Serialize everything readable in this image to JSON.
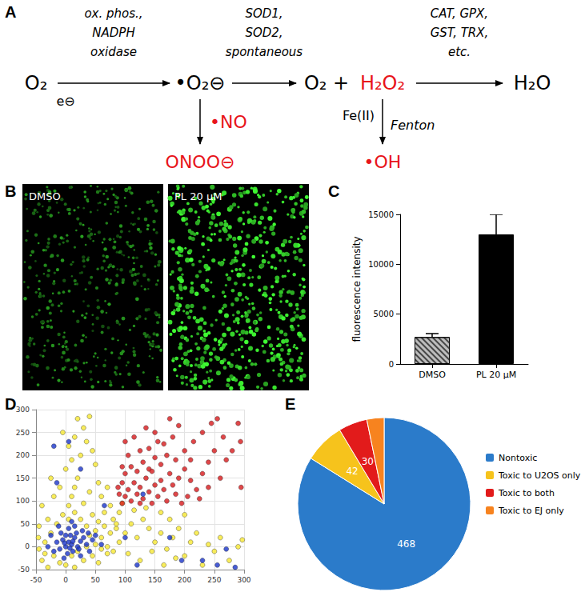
{
  "diagram": {
    "panel": "A",
    "main": [
      {
        "label": "O₂"
      },
      {
        "label": "•O₂⊖"
      },
      {
        "label": "O₂ +"
      },
      {
        "label": "H₂O₂",
        "color": "#e8141b"
      },
      {
        "label": "H₂O"
      }
    ],
    "steps": [
      {
        "lines": [
          "ox. phos.,",
          "NADPH",
          "oxidase"
        ],
        "below": "e⊖"
      },
      {
        "lines": [
          "SOD1,",
          "SOD2,",
          "spontaneous"
        ]
      },
      {
        "lines": [
          "CAT, GPX,",
          "GST, TRX,",
          "etc."
        ]
      }
    ],
    "branches": [
      {
        "reagent": "•NO",
        "product": "ONOO⊖",
        "color": "#e8141b"
      },
      {
        "left": "Fe(II)",
        "right": "Fenton",
        "product": "•OH",
        "color": "#e8141b"
      }
    ]
  },
  "images": {
    "panel": "B",
    "labels": [
      "DMSO",
      "PL 20 μM"
    ]
  },
  "chart_data": [
    {
      "panel": "C",
      "type": "bar",
      "categories": [
        "DMSO",
        "PL 20 μM"
      ],
      "values": [
        2700,
        13000
      ],
      "errors": [
        350,
        2000
      ],
      "colors": [
        "#bdbdbd",
        "#000000"
      ],
      "ylabel": "fluorescence intensity",
      "ylim": [
        0,
        15000
      ],
      "yticks": [
        0,
        5000,
        10000,
        15000
      ],
      "grid": false
    },
    {
      "panel": "D",
      "type": "scatter",
      "xlim": [
        -50,
        300
      ],
      "xticks": [
        -50,
        0,
        50,
        100,
        150,
        200,
        250,
        300
      ],
      "ylim": [
        -50,
        300
      ],
      "yticks": [
        -50,
        0,
        50,
        100,
        150,
        200,
        250,
        300
      ],
      "grid": true,
      "series": [
        {
          "color": "#f7e832",
          "marker": "circle",
          "values": [
            [
              -40,
              -30
            ],
            [
              -30,
              -45
            ],
            [
              -20,
              -20
            ],
            [
              -10,
              -35
            ],
            [
              0,
              -40
            ],
            [
              15,
              -45
            ],
            [
              30,
              -30
            ],
            [
              45,
              -20
            ],
            [
              55,
              -35
            ],
            [
              70,
              -15
            ],
            [
              -35,
              10
            ],
            [
              -25,
              30
            ],
            [
              -15,
              50
            ],
            [
              -5,
              70
            ],
            [
              5,
              90
            ],
            [
              10,
              110
            ],
            [
              15,
              130
            ],
            [
              20,
              150
            ],
            [
              0,
              170
            ],
            [
              10,
              190
            ],
            [
              25,
              200
            ],
            [
              5,
              220
            ],
            [
              15,
              240
            ],
            [
              30,
              260
            ],
            [
              20,
              280
            ],
            [
              40,
              285
            ],
            [
              -5,
              250
            ],
            [
              35,
              230
            ],
            [
              45,
              210
            ],
            [
              50,
              180
            ],
            [
              -30,
              60
            ],
            [
              -40,
              90
            ],
            [
              -20,
              110
            ],
            [
              -25,
              150
            ],
            [
              -10,
              130
            ],
            [
              30,
              95
            ],
            [
              40,
              120
            ],
            [
              55,
              140
            ],
            [
              60,
              110
            ],
            [
              70,
              130
            ],
            [
              25,
              60
            ],
            [
              35,
              45
            ],
            [
              45,
              70
            ],
            [
              55,
              55
            ],
            [
              65,
              75
            ],
            [
              75,
              90
            ],
            [
              80,
              60
            ],
            [
              85,
              40
            ],
            [
              90,
              75
            ],
            [
              95,
              95
            ],
            [
              100,
              30
            ],
            [
              110,
              50
            ],
            [
              120,
              20
            ],
            [
              130,
              60
            ],
            [
              140,
              40
            ],
            [
              150,
              10
            ],
            [
              160,
              30
            ],
            [
              170,
              -5
            ],
            [
              180,
              20
            ],
            [
              190,
              40
            ],
            [
              200,
              -20
            ],
            [
              210,
              10
            ],
            [
              220,
              30
            ],
            [
              230,
              -40
            ],
            [
              240,
              5
            ],
            [
              250,
              -10
            ],
            [
              260,
              20
            ],
            [
              275,
              -30
            ],
            [
              290,
              0
            ],
            [
              297,
              15
            ],
            [
              105,
              -15
            ],
            [
              125,
              -30
            ],
            [
              145,
              -10
            ],
            [
              165,
              -40
            ],
            [
              185,
              -25
            ],
            [
              115,
              80
            ],
            [
              135,
              85
            ],
            [
              160,
              75
            ],
            [
              175,
              60
            ],
            [
              200,
              70
            ],
            [
              60,
              20
            ],
            [
              70,
              0
            ],
            [
              80,
              -10
            ],
            [
              90,
              10
            ],
            [
              50,
              35
            ],
            [
              40,
              25
            ],
            [
              65,
              45
            ],
            [
              75,
              30
            ],
            [
              85,
              50
            ],
            [
              -45,
              -5
            ],
            [
              -46,
              20
            ],
            [
              -45,
              45
            ],
            [
              -35,
              -15
            ],
            [
              10,
              -20
            ],
            [
              20,
              -10
            ],
            [
              35,
              0
            ],
            [
              50,
              5
            ],
            [
              60,
              -5
            ],
            [
              5,
              60
            ],
            [
              15,
              75
            ]
          ]
        },
        {
          "color": "#d7191c",
          "marker": "circle",
          "values": [
            [
              95,
              95
            ],
            [
              100,
              110
            ],
            [
              105,
              125
            ],
            [
              110,
              100
            ],
            [
              115,
              140
            ],
            [
              120,
              115
            ],
            [
              125,
              130
            ],
            [
              130,
              105
            ],
            [
              135,
              150
            ],
            [
              140,
              120
            ],
            [
              145,
              95
            ],
            [
              150,
              135
            ],
            [
              155,
              110
            ],
            [
              160,
              145
            ],
            [
              165,
              125
            ],
            [
              170,
              100
            ],
            [
              175,
              160
            ],
            [
              180,
              135
            ],
            [
              185,
              115
            ],
            [
              190,
              150
            ],
            [
              95,
              140
            ],
            [
              100,
              160
            ],
            [
              110,
              175
            ],
            [
              120,
              165
            ],
            [
              130,
              185
            ],
            [
              140,
              170
            ],
            [
              150,
              195
            ],
            [
              160,
              180
            ],
            [
              170,
              200
            ],
            [
              185,
              190
            ],
            [
              200,
              170
            ],
            [
              210,
              145
            ],
            [
              220,
              125
            ],
            [
              230,
              160
            ],
            [
              240,
              185
            ],
            [
              250,
              210
            ],
            [
              260,
              150
            ],
            [
              200,
              210
            ],
            [
              215,
              230
            ],
            [
              230,
              250
            ],
            [
              245,
              270
            ],
            [
              255,
              280
            ],
            [
              180,
              240
            ],
            [
              165,
              225
            ],
            [
              150,
              250
            ],
            [
              140,
              215
            ],
            [
              125,
              210
            ],
            [
              190,
              265
            ],
            [
              175,
              280
            ],
            [
              105,
              200
            ],
            [
              90,
              115
            ],
            [
              88,
              130
            ],
            [
              95,
              175
            ],
            [
              100,
              230
            ],
            [
              115,
              240
            ],
            [
              135,
              260
            ],
            [
              205,
              110
            ],
            [
              225,
              105
            ],
            [
              270,
              190
            ],
            [
              280,
              210
            ],
            [
              295,
              130
            ],
            [
              294,
              230
            ],
            [
              290,
              270
            ],
            [
              265,
              240
            ],
            [
              240,
              130
            ],
            [
              210,
              190
            ],
            [
              195,
              95
            ],
            [
              155,
              230
            ],
            [
              125,
              95
            ],
            [
              145,
              165
            ]
          ]
        },
        {
          "color": "#1a34c9",
          "marker": "circle",
          "values": [
            [
              0,
              0
            ],
            [
              5,
              10
            ],
            [
              10,
              5
            ],
            [
              -5,
              15
            ],
            [
              15,
              20
            ],
            [
              20,
              0
            ],
            [
              -10,
              -5
            ],
            [
              8,
              25
            ],
            [
              25,
              12
            ],
            [
              12,
              -10
            ],
            [
              -15,
              10
            ],
            [
              30,
              20
            ],
            [
              18,
              30
            ],
            [
              -8,
              30
            ],
            [
              3,
              -15
            ],
            [
              22,
              -5
            ],
            [
              35,
              5
            ],
            [
              -20,
              -10
            ],
            [
              28,
              35
            ],
            [
              5,
              40
            ],
            [
              -25,
              25
            ],
            [
              40,
              -10
            ],
            [
              -3,
              -25
            ],
            [
              15,
              45
            ],
            [
              38,
              30
            ],
            [
              45,
              15
            ],
            [
              -12,
              45
            ],
            [
              25,
              -20
            ],
            [
              50,
              25
            ],
            [
              10,
              55
            ],
            [
              -30,
              0
            ],
            [
              0,
              25
            ],
            [
              12,
              12
            ],
            [
              7,
              -3
            ],
            [
              -2,
              8
            ],
            [
              -20,
              220
            ],
            [
              5,
              230
            ],
            [
              25,
              170
            ],
            [
              60,
              5
            ],
            [
              195,
              -30
            ],
            [
              270,
              -5
            ],
            [
              285,
              -45
            ],
            [
              230,
              -30
            ],
            [
              130,
              115
            ],
            [
              255,
              -40
            ],
            [
              100,
              20
            ],
            [
              -15,
              140
            ],
            [
              175,
              20
            ],
            [
              120,
              -40
            ],
            [
              65,
              90
            ]
          ]
        }
      ]
    },
    {
      "panel": "E",
      "type": "pie",
      "categories": [
        "Nontoxic",
        "Toxic to U2OS only",
        "Toxic to both",
        "Toxic to EJ only"
      ],
      "values": [
        468,
        42,
        30,
        18
      ],
      "colors": [
        "#2b7bca",
        "#f6c31c",
        "#e21b1b",
        "#f7831f"
      ],
      "data_labels": true,
      "legend": "right"
    }
  ]
}
